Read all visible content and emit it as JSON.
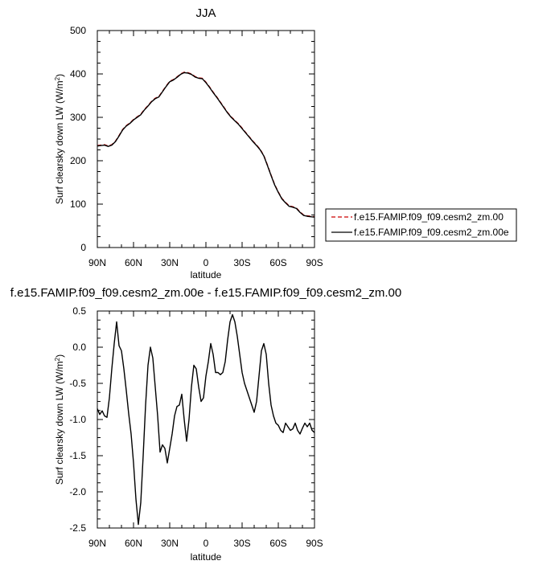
{
  "chart_data": [
    {
      "type": "line",
      "title": "JJA",
      "xlabel": "latitude",
      "ylabel": "Surf clearsky down LW (W/m",
      "ylabel_sup": "2",
      "ylabel_end": ")",
      "xlim": [
        90,
        -90
      ],
      "ylim": [
        0,
        500
      ],
      "x_ticks": [
        90,
        60,
        30,
        0,
        -30,
        -60,
        -90
      ],
      "x_tick_labels": [
        "90N",
        "60N",
        "30N",
        "0",
        "30S",
        "60S",
        "90S"
      ],
      "y_ticks": [
        0,
        100,
        200,
        300,
        400,
        500
      ],
      "y_tick_labels": [
        "0",
        "100",
        "200",
        "300",
        "400",
        "500"
      ],
      "legend_placement": "right",
      "series": [
        {
          "name": "f.e15.FAMIP.f09_f09.cesm2_zm.00",
          "color": "#cc0000",
          "dash": "dashed",
          "x": [
            90,
            87,
            84,
            81,
            78,
            75,
            72,
            69,
            66,
            63,
            60,
            57,
            54,
            51,
            48,
            45,
            42,
            39,
            36,
            33,
            30,
            27,
            24,
            21,
            18,
            15,
            12,
            9,
            6,
            3,
            0,
            -3,
            -6,
            -9,
            -12,
            -15,
            -18,
            -21,
            -24,
            -27,
            -30,
            -33,
            -36,
            -39,
            -42,
            -45,
            -48,
            -51,
            -54,
            -57,
            -60,
            -63,
            -66,
            -69,
            -72,
            -75,
            -78,
            -81,
            -84,
            -87,
            -90
          ],
          "y": [
            235,
            236,
            237,
            234,
            237,
            245,
            258,
            272,
            281,
            287,
            295,
            301,
            307,
            318,
            327,
            337,
            344,
            348,
            360,
            372,
            383,
            387,
            393,
            400,
            404,
            403,
            400,
            394,
            391,
            390,
            381,
            370,
            358,
            347,
            335,
            323,
            311,
            301,
            293,
            285,
            275,
            265,
            255,
            245,
            236,
            226,
            212,
            190,
            167,
            145,
            128,
            113,
            104,
            96,
            94,
            91,
            82,
            75,
            73,
            72,
            71
          ]
        },
        {
          "name": "f.e15.FAMIP.f09_f09.cesm2_zm.00e",
          "color": "#000000",
          "dash": "solid",
          "x": [
            90,
            87,
            84,
            81,
            78,
            75,
            72,
            69,
            66,
            63,
            60,
            57,
            54,
            51,
            48,
            45,
            42,
            39,
            36,
            33,
            30,
            27,
            24,
            21,
            18,
            15,
            12,
            9,
            6,
            3,
            0,
            -3,
            -6,
            -9,
            -12,
            -15,
            -18,
            -21,
            -24,
            -27,
            -30,
            -33,
            -36,
            -39,
            -42,
            -45,
            -48,
            -51,
            -54,
            -57,
            -60,
            -63,
            -66,
            -69,
            -72,
            -75,
            -78,
            -81,
            -84,
            -87,
            -90
          ],
          "y": [
            234,
            235,
            236,
            233,
            236,
            244,
            257,
            271,
            280,
            286,
            294,
            300,
            306,
            317,
            326,
            336,
            343,
            347,
            359,
            371,
            382,
            386,
            392,
            399,
            403,
            402,
            399,
            393,
            390,
            389,
            380,
            369,
            357,
            346,
            334,
            322,
            310,
            300,
            292,
            284,
            274,
            264,
            254,
            244,
            235,
            225,
            211,
            189,
            166,
            144,
            127,
            112,
            103,
            95,
            93,
            90,
            81,
            74,
            72,
            71,
            70
          ]
        }
      ]
    },
    {
      "type": "line",
      "title": "f.e15.FAMIP.f09_f09.cesm2_zm.00e - f.e15.FAMIP.f09_f09.cesm2_zm.00",
      "xlabel": "latitude",
      "ylabel": "Surf clearsky down LW (W/m",
      "ylabel_sup": "2",
      "ylabel_end": ")",
      "xlim": [
        90,
        -90
      ],
      "ylim": [
        -2.5,
        0.5
      ],
      "x_ticks": [
        90,
        60,
        30,
        0,
        -30,
        -60,
        -90
      ],
      "x_tick_labels": [
        "90N",
        "60N",
        "30N",
        "0",
        "30S",
        "60S",
        "90S"
      ],
      "y_ticks": [
        -2.5,
        -2.0,
        -1.5,
        -1.0,
        -0.5,
        0.0,
        0.5
      ],
      "y_tick_labels": [
        "-2.5",
        "-2.0",
        "-1.5",
        "-1.0",
        "-0.5",
        "0.0",
        "0.5"
      ],
      "series": [
        {
          "color": "#000000",
          "dash": "solid",
          "x": [
            90,
            88,
            86,
            84,
            82,
            80,
            78,
            76,
            74,
            72,
            70,
            68,
            66,
            64,
            62,
            60,
            58,
            56,
            54,
            52,
            50,
            48,
            46,
            44,
            42,
            40,
            38,
            36,
            34,
            32,
            30,
            28,
            26,
            24,
            22,
            20,
            18,
            16,
            14,
            12,
            10,
            8,
            6,
            4,
            2,
            0,
            -2,
            -4,
            -6,
            -8,
            -10,
            -12,
            -14,
            -16,
            -18,
            -20,
            -22,
            -24,
            -26,
            -28,
            -30,
            -32,
            -34,
            -36,
            -38,
            -40,
            -42,
            -44,
            -46,
            -48,
            -50,
            -52,
            -54,
            -56,
            -58,
            -60,
            -62,
            -64,
            -66,
            -68,
            -70,
            -72,
            -74,
            -76,
            -78,
            -80,
            -82,
            -84,
            -86,
            -88,
            -90
          ],
          "y": [
            -0.85,
            -0.93,
            -0.88,
            -0.95,
            -0.97,
            -0.7,
            -0.3,
            0.05,
            0.35,
            0.02,
            -0.05,
            -0.3,
            -0.6,
            -0.92,
            -1.2,
            -1.6,
            -2.1,
            -2.45,
            -2.15,
            -1.5,
            -0.8,
            -0.25,
            0.0,
            -0.15,
            -0.55,
            -0.95,
            -1.45,
            -1.35,
            -1.4,
            -1.6,
            -1.4,
            -1.2,
            -0.95,
            -0.82,
            -0.8,
            -0.65,
            -1.0,
            -1.3,
            -1.0,
            -0.55,
            -0.25,
            -0.3,
            -0.55,
            -0.75,
            -0.7,
            -0.4,
            -0.2,
            0.05,
            -0.1,
            -0.35,
            -0.35,
            -0.38,
            -0.35,
            -0.2,
            0.1,
            0.35,
            0.45,
            0.35,
            0.15,
            -0.1,
            -0.35,
            -0.5,
            -0.6,
            -0.7,
            -0.8,
            -0.9,
            -0.75,
            -0.4,
            -0.05,
            0.05,
            -0.1,
            -0.5,
            -0.8,
            -0.95,
            -1.05,
            -1.08,
            -1.15,
            -1.18,
            -1.05,
            -1.1,
            -1.15,
            -1.13,
            -1.05,
            -1.15,
            -1.2,
            -1.12,
            -1.05,
            -1.1,
            -1.05,
            -1.15,
            -1.18
          ]
        }
      ]
    }
  ]
}
